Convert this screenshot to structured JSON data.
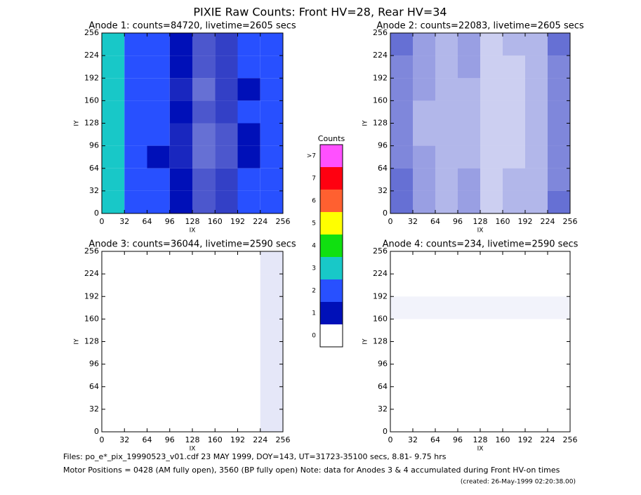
{
  "title": "PIXIE Raw Counts:  Front HV=28, Rear HV=34",
  "chart_data": [
    {
      "type": "heatmap",
      "title": "Anode 1: counts=84720, livetime=2605 secs",
      "xlabel": "IX",
      "ylabel": "IY",
      "xlim": [
        0,
        256
      ],
      "ylim": [
        0,
        256
      ],
      "xticks": [
        0,
        32,
        64,
        96,
        128,
        160,
        192,
        224,
        256
      ],
      "yticks": [
        0,
        32,
        64,
        96,
        128,
        160,
        192,
        224,
        256
      ],
      "values": [
        [
          2.8,
          1.6,
          1.2,
          1.0,
          0.7,
          0.8,
          1.1,
          1.7
        ],
        [
          2.6,
          1.5,
          1.1,
          1.0,
          0.7,
          0.8,
          1.1,
          1.6
        ],
        [
          2.7,
          1.5,
          1.1,
          0.9,
          0.6,
          0.8,
          1.0,
          1.6
        ],
        [
          2.6,
          1.4,
          1.1,
          1.0,
          0.7,
          0.8,
          1.1,
          1.6
        ],
        [
          2.5,
          1.5,
          1.1,
          0.9,
          0.6,
          0.7,
          1.0,
          1.5
        ],
        [
          2.6,
          1.4,
          1.0,
          0.9,
          0.6,
          0.7,
          1.0,
          1.6
        ],
        [
          2.5,
          1.4,
          1.1,
          1.0,
          0.7,
          0.8,
          1.1,
          1.6
        ],
        [
          2.2,
          1.3,
          1.1,
          1.0,
          0.7,
          0.8,
          1.1,
          1.7
        ]
      ]
    },
    {
      "type": "heatmap",
      "title": "Anode 2: counts=22083, livetime=2605 secs",
      "xlabel": "IX",
      "ylabel": "IY",
      "xlim": [
        0,
        256
      ],
      "ylim": [
        0,
        256
      ],
      "xticks": [
        0,
        32,
        64,
        96,
        128,
        160,
        192,
        224,
        256
      ],
      "yticks": [
        0,
        32,
        64,
        96,
        128,
        160,
        192,
        224,
        256
      ],
      "values": [
        [
          0.6,
          0.4,
          0.3,
          0.4,
          0.2,
          0.3,
          0.3,
          0.6
        ],
        [
          0.5,
          0.4,
          0.3,
          0.4,
          0.2,
          0.2,
          0.3,
          0.5
        ],
        [
          0.5,
          0.4,
          0.3,
          0.3,
          0.2,
          0.2,
          0.3,
          0.5
        ],
        [
          0.5,
          0.3,
          0.3,
          0.3,
          0.2,
          0.2,
          0.3,
          0.5
        ],
        [
          0.5,
          0.3,
          0.3,
          0.3,
          0.2,
          0.2,
          0.3,
          0.5
        ],
        [
          0.5,
          0.4,
          0.3,
          0.3,
          0.2,
          0.2,
          0.3,
          0.5
        ],
        [
          0.6,
          0.4,
          0.3,
          0.4,
          0.2,
          0.3,
          0.3,
          0.5
        ],
        [
          0.6,
          0.4,
          0.3,
          0.4,
          0.2,
          0.3,
          0.3,
          0.6
        ]
      ]
    },
    {
      "type": "heatmap",
      "title": "Anode 3: counts=36044, livetime=2590 secs",
      "xlabel": "IX",
      "ylabel": "IY",
      "xlim": [
        0,
        256
      ],
      "ylim": [
        0,
        256
      ],
      "xticks": [
        0,
        32,
        64,
        96,
        128,
        160,
        192,
        224,
        256
      ],
      "yticks": [
        0,
        32,
        64,
        96,
        128,
        160,
        192,
        224,
        256
      ],
      "values": [
        [
          0,
          0,
          0,
          0,
          0,
          0,
          0,
          0.1
        ],
        [
          0,
          0,
          0,
          0,
          0,
          0,
          0,
          0.1
        ],
        [
          0,
          0,
          0,
          0,
          0,
          0,
          0,
          0.1
        ],
        [
          0,
          0,
          0,
          0,
          0,
          0,
          0,
          0.1
        ],
        [
          0,
          0,
          0,
          0,
          0,
          0,
          0,
          0.1
        ],
        [
          0,
          0,
          0,
          0,
          0,
          0,
          0,
          0.1
        ],
        [
          0,
          0,
          0,
          0,
          0,
          0,
          0,
          0.1
        ],
        [
          0,
          0,
          0,
          0,
          0,
          0,
          0,
          0.1
        ]
      ]
    },
    {
      "type": "heatmap",
      "title": "Anode 4: counts=234, livetime=2590 secs",
      "xlabel": "IX",
      "ylabel": "IY",
      "xlim": [
        0,
        256
      ],
      "ylim": [
        0,
        256
      ],
      "xticks": [
        0,
        32,
        64,
        96,
        128,
        160,
        192,
        224,
        256
      ],
      "yticks": [
        0,
        32,
        64,
        96,
        128,
        160,
        192,
        224,
        256
      ],
      "values": [
        [
          0,
          0,
          0,
          0,
          0,
          0,
          0,
          0
        ],
        [
          0,
          0,
          0,
          0,
          0,
          0,
          0,
          0
        ],
        [
          0.05,
          0.05,
          0.05,
          0.05,
          0.05,
          0.05,
          0.05,
          0.05
        ],
        [
          0,
          0,
          0,
          0,
          0,
          0,
          0,
          0
        ],
        [
          0,
          0,
          0,
          0,
          0,
          0,
          0,
          0
        ],
        [
          0,
          0,
          0,
          0,
          0,
          0,
          0,
          0
        ],
        [
          0,
          0,
          0,
          0,
          0,
          0,
          0,
          0
        ],
        [
          0,
          0,
          0,
          0,
          0,
          0,
          0,
          0
        ]
      ]
    }
  ],
  "colorbar": {
    "title": "Counts",
    "labels": [
      "0",
      "1",
      "2",
      "3",
      "4",
      "5",
      "6",
      "7",
      ">7"
    ],
    "colors": [
      "#ffffff",
      "#0010b8",
      "#2850ff",
      "#18c8c8",
      "#10e010",
      "#ffff00",
      "#ff6030",
      "#ff0010",
      "#ff50ff"
    ]
  },
  "footer": [
    "Files: po_e*_pix_19990523_v01.cdf   23 MAY 1999, DOY=143, UT=31723-35100 secs,  8.81- 9.75 hrs",
    "Motor Positions = 0428 (AM fully open), 3560 (BP fully open)    Note: data for Anodes 3 & 4 accumulated during Front HV-on times",
    "(created: 26-May-1999 02:20:38.00)"
  ]
}
